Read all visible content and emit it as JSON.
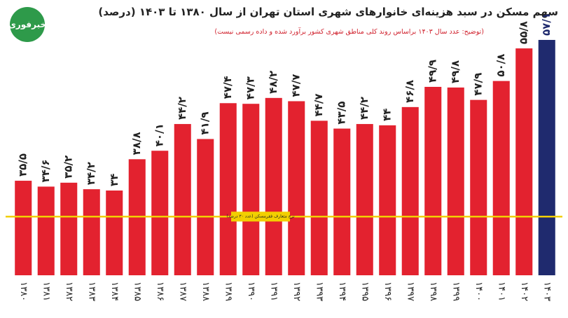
{
  "logo": "خبرفوری",
  "chart_data": {
    "type": "bar",
    "title": "سهم مسکن در سبد هزینه‌ای خانوارهای شهری استان تهران از سال ۱۳۸۰ تا ۱۴۰۳ (درصد)",
    "subtitle": "(توضیح: عدد سال ۱۴۰۳ براساس روند کلی مناطق شهری کشور برآورد شده و داده رسمی نیست)",
    "categories": [
      "۱۳۸۰",
      "۱۳۸۱",
      "۱۳۸۲",
      "۱۳۸۳",
      "۱۳۸۴",
      "۱۳۸۵",
      "۱۳۸۶",
      "۱۳۸۷",
      "۱۳۸۸",
      "۱۳۸۹",
      "۱۳۹۰",
      "۱۳۹۱",
      "۱۳۹۲",
      "۱۳۹۳",
      "۱۳۹۴",
      "۱۳۹۵",
      "۱۳۹۶",
      "۱۳۹۷",
      "۱۳۹۸",
      "۱۳۹۹",
      "۱۴۰۰",
      "۱۴۰۱",
      "۱۴۰۲",
      "۱۴۰۳"
    ],
    "values": [
      35.5,
      34.6,
      35.2,
      34.2,
      34,
      38.8,
      40.1,
      44.2,
      41.9,
      47.4,
      47.3,
      48.2,
      47.7,
      44.7,
      43.5,
      44.2,
      44,
      46.8,
      49.9,
      49.8,
      47.9,
      50.8,
      55.8,
      57.1
    ],
    "value_labels": [
      "۳۵/۵",
      "۳۴/۶",
      "۳۵/۲",
      "۳۴/۲",
      "۳۴",
      "۳۸/۸",
      "۴۰/۱",
      "۴۴/۲",
      "۴۱/۹",
      "۴۷/۴",
      "۴۷/۳",
      "۴۸/۲",
      "۴۷/۷",
      "۴۴/۷",
      "۴۳/۵",
      "۴۴/۲",
      "۴۴",
      "۴۶/۸",
      "۴۹/۹",
      "۴۹/۸",
      "۴۷/۹",
      "۵۰/۸",
      "۵۵/۸",
      "۵۷/۱"
    ],
    "colors": [
      "#e3222f",
      "#e3222f",
      "#e3222f",
      "#e3222f",
      "#e3222f",
      "#e3222f",
      "#e3222f",
      "#e3222f",
      "#e3222f",
      "#e3222f",
      "#e3222f",
      "#e3222f",
      "#e3222f",
      "#e3222f",
      "#e3222f",
      "#e3222f",
      "#e3222f",
      "#e3222f",
      "#e3222f",
      "#e3222f",
      "#e3222f",
      "#e3222f",
      "#e3222f",
      "#1f2a6e"
    ],
    "ylim": [
      21,
      60
    ],
    "reference_line": {
      "value": 30,
      "label": "نرخ متعارف فقرمسکن (عدد ۳۰ درصد)",
      "color": "#f2cf00"
    }
  }
}
